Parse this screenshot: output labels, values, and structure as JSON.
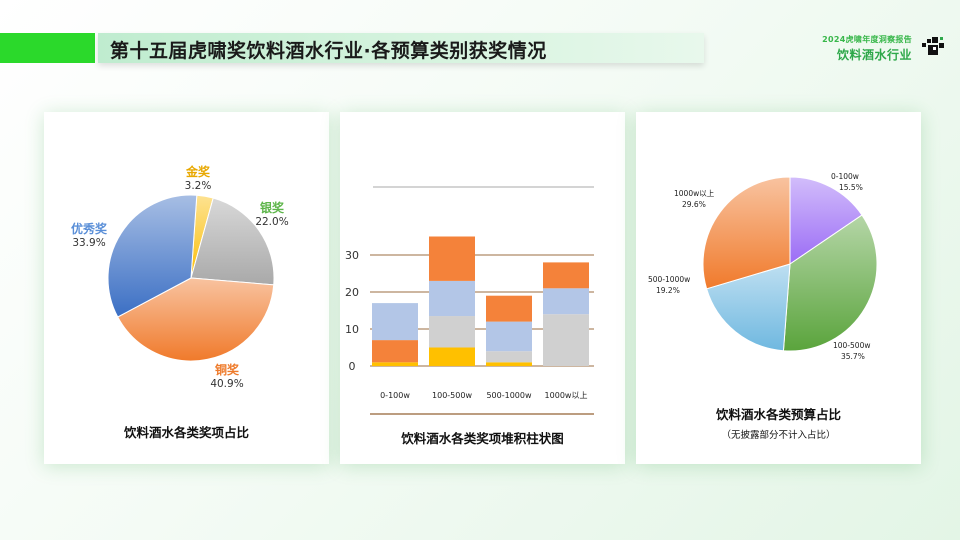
{
  "header": {
    "title": "第十五届虎啸奖饮料酒水行业·各预算类别获奖情况",
    "brand_subtitle": "2024虎啸年度洞察报告",
    "brand_title": "饮料酒水行业"
  },
  "colors": {
    "accent_green": "#2bd92b",
    "gold": "#fbbf0a",
    "silver": "#a9a9a9",
    "bronze": "#f07a2b",
    "excellence": "#3b6fc4"
  },
  "chart_data": [
    {
      "type": "pie",
      "caption": "饮料酒水各类奖项占比",
      "slices": [
        {
          "label": "金奖",
          "value": 3.2,
          "value_text": "3.2%",
          "color": "#fbbf0a",
          "label_color": "#e8a800"
        },
        {
          "label": "银奖",
          "value": 22.0,
          "value_text": "22.0%",
          "color": "#a9a9a9",
          "label_color": "#5db54a"
        },
        {
          "label": "铜奖",
          "value": 40.9,
          "value_text": "40.9%",
          "color": "#f07a2b",
          "label_color": "#ee7a2a"
        },
        {
          "label": "优秀奖",
          "value": 33.9,
          "value_text": "33.9%",
          "color": "#3b6fc4",
          "label_color": "#5a8fd8"
        }
      ]
    },
    {
      "type": "bar",
      "stacked": true,
      "caption": "饮料酒水各类奖项堆积柱状图",
      "categories": [
        "0-100w",
        "100-500w",
        "500-1000w",
        "1000w以上"
      ],
      "yticks": [
        "0",
        "10",
        "20",
        "30"
      ],
      "ylim": [
        0,
        36
      ],
      "grid": true,
      "series": [
        {
          "color": "#ffc000",
          "values": [
            1,
            5,
            1,
            0
          ]
        },
        {
          "color": "#d0d0d0",
          "values": [
            0,
            8.5,
            3,
            14
          ]
        },
        {
          "color": "#b3c6e7",
          "values": [
            0,
            9.5,
            8,
            7
          ]
        },
        {
          "color": "#f4823a",
          "values": [
            6,
            12,
            7,
            7
          ]
        },
        {
          "color": "#b3c6e7",
          "values": [
            10,
            0,
            0,
            0
          ]
        }
      ]
    },
    {
      "type": "pie",
      "caption": "饮料酒水各类预算占比",
      "note": "（无披露部分不计入占比）",
      "slices": [
        {
          "label": "0-100w",
          "value": 15.5,
          "value_text": "15.5%",
          "color": "#9b6cf5"
        },
        {
          "label": "100-500w",
          "value": 35.7,
          "value_text": "35.7%",
          "color": "#5aa43c"
        },
        {
          "label": "500-1000w",
          "value": 19.2,
          "value_text": "19.2%",
          "color": "#6fb8e0"
        },
        {
          "label": "1000w以上",
          "value": 29.6,
          "value_text": "29.6%",
          "color": "#f07a2b"
        }
      ]
    }
  ]
}
